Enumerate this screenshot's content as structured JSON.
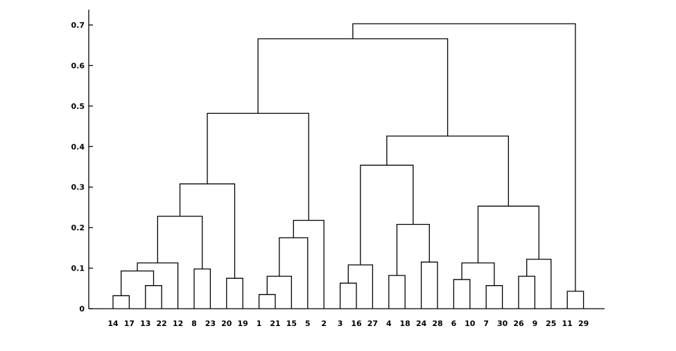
{
  "chart_data": {
    "type": "dendrogram",
    "title": "",
    "xlabel": "",
    "ylabel": "",
    "ylim": [
      0,
      0.7
    ],
    "yticks": [
      "0",
      "0.1",
      "0.2",
      "0.3",
      "0.4",
      "0.5",
      "0.6",
      "0.7"
    ],
    "grid": false,
    "leaf_order": [
      "14",
      "17",
      "13",
      "22",
      "12",
      "8",
      "23",
      "20",
      "19",
      "1",
      "21",
      "15",
      "5",
      "2",
      "3",
      "16",
      "27",
      "4",
      "18",
      "24",
      "28",
      "6",
      "10",
      "7",
      "30",
      "26",
      "9",
      "25",
      "11",
      "29"
    ],
    "merges": [
      {
        "left": "14",
        "right": "17",
        "height": 0.032
      },
      {
        "left": "13",
        "right": "22",
        "height": 0.057
      },
      {
        "left": "14,17",
        "right": "13,22",
        "height": 0.093
      },
      {
        "left": "14,17,13,22",
        "right": "12",
        "height": 0.113
      },
      {
        "left": "8",
        "right": "23",
        "height": 0.098
      },
      {
        "left": "14,17,13,22,12",
        "right": "8,23",
        "height": 0.228
      },
      {
        "left": "20",
        "right": "19",
        "height": 0.075
      },
      {
        "left": "14,17,13,22,12,8,23",
        "right": "20,19",
        "height": 0.308
      },
      {
        "left": "1",
        "right": "21",
        "height": 0.035
      },
      {
        "left": "1,21",
        "right": "15",
        "height": 0.08
      },
      {
        "left": "1,21,15",
        "right": "5",
        "height": 0.175
      },
      {
        "left": "1,21,15,5",
        "right": "2",
        "height": 0.218
      },
      {
        "left": "14,17,13,22,12,8,23,20,19",
        "right": "1,21,15,5,2",
        "height": 0.482
      },
      {
        "left": "3",
        "right": "16",
        "height": 0.063
      },
      {
        "left": "3,16",
        "right": "27",
        "height": 0.108
      },
      {
        "left": "4",
        "right": "18",
        "height": 0.082
      },
      {
        "left": "24",
        "right": "28",
        "height": 0.115
      },
      {
        "left": "4,18",
        "right": "24,28",
        "height": 0.208
      },
      {
        "left": "3,16,27",
        "right": "4,18,24,28",
        "height": 0.354
      },
      {
        "left": "6",
        "right": "10",
        "height": 0.072
      },
      {
        "left": "7",
        "right": "30",
        "height": 0.057
      },
      {
        "left": "6,10",
        "right": "7,30",
        "height": 0.113
      },
      {
        "left": "26",
        "right": "9",
        "height": 0.08
      },
      {
        "left": "26,9",
        "right": "25",
        "height": 0.122
      },
      {
        "left": "6,10,7,30",
        "right": "26,9,25",
        "height": 0.253
      },
      {
        "left": "3,16,27,4,18,24,28",
        "right": "6,10,7,30,26,9,25",
        "height": 0.426
      },
      {
        "left": "14,17,13,22,12,8,23,20,19,1,21,15,5,2",
        "right": "3,16,27,4,18,24,28,6,10,7,30,26,9,25",
        "height": 0.666
      },
      {
        "left": "11",
        "right": "29",
        "height": 0.043
      },
      {
        "left": "14,17,13,22,12,8,23,20,19,1,21,15,5,2,3,16,27,4,18,24,28,6,10,7,30,26,9,25",
        "right": "11,29",
        "height": 0.703
      }
    ]
  }
}
